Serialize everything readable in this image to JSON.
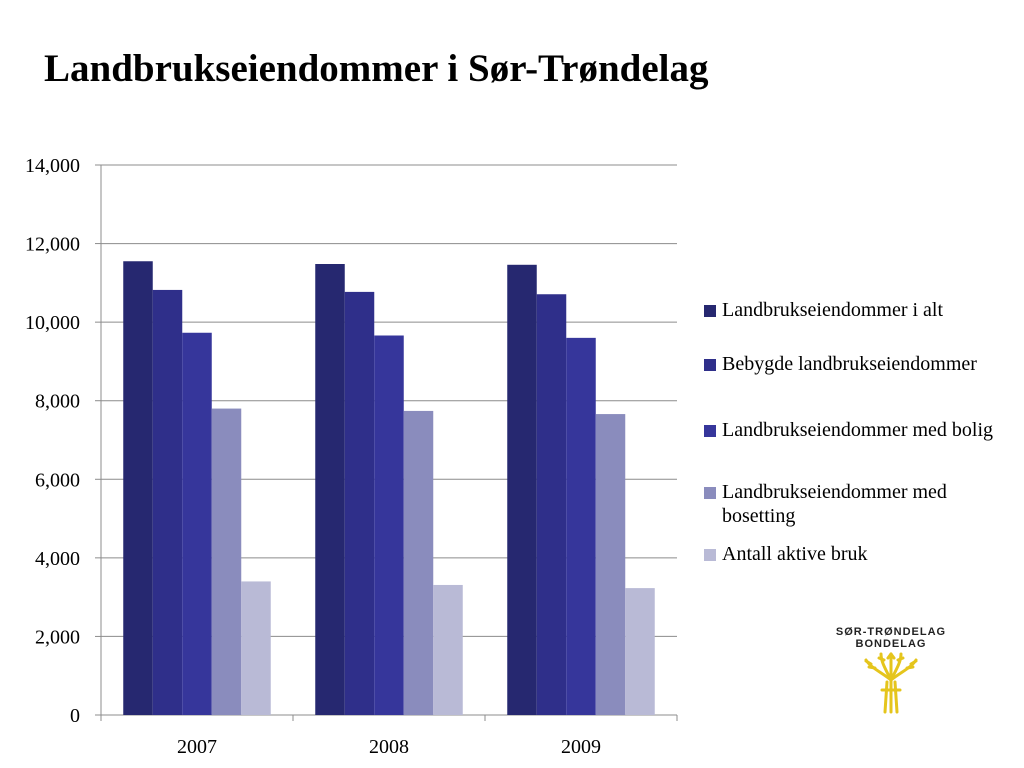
{
  "colors": {
    "series": [
      "#262870",
      "#2f2f8a",
      "#36369b",
      "#8a8cbd",
      "#b9bad6"
    ],
    "gridline": "#8c8c8c",
    "logo_text": "#222222",
    "logo_wheat": "#e5c51c"
  },
  "logo": {
    "line1": "SØR-TRØNDELAG",
    "line2": "BONDELAG",
    "icon": "wheat-sheaf-icon"
  },
  "chart_data": {
    "type": "bar",
    "title": "Landbrukseiendommer i Sør-Trøndelag",
    "categories": [
      "2007",
      "2008",
      "2009"
    ],
    "series": [
      {
        "name": "Landbrukseiendommer i alt",
        "values": [
          11550,
          11480,
          11460
        ]
      },
      {
        "name": "Bebygde landbrukseiendommer",
        "values": [
          10820,
          10770,
          10710
        ]
      },
      {
        "name": "Landbrukseiendommer med bolig",
        "values": [
          9730,
          9660,
          9600
        ]
      },
      {
        "name": "Landbrukseiendommer med bosetting",
        "values": [
          7800,
          7740,
          7660
        ]
      },
      {
        "name": "Antall aktive bruk",
        "values": [
          3400,
          3310,
          3230
        ]
      }
    ],
    "ylim": [
      0,
      14000
    ],
    "yticks": [
      0,
      2000,
      4000,
      6000,
      8000,
      10000,
      12000,
      14000
    ],
    "ytick_labels": [
      "0",
      "2,000",
      "4,000",
      "6,000",
      "8,000",
      "10,000",
      "12,000",
      "14,000"
    ],
    "grid": true,
    "legend_position": "right"
  }
}
